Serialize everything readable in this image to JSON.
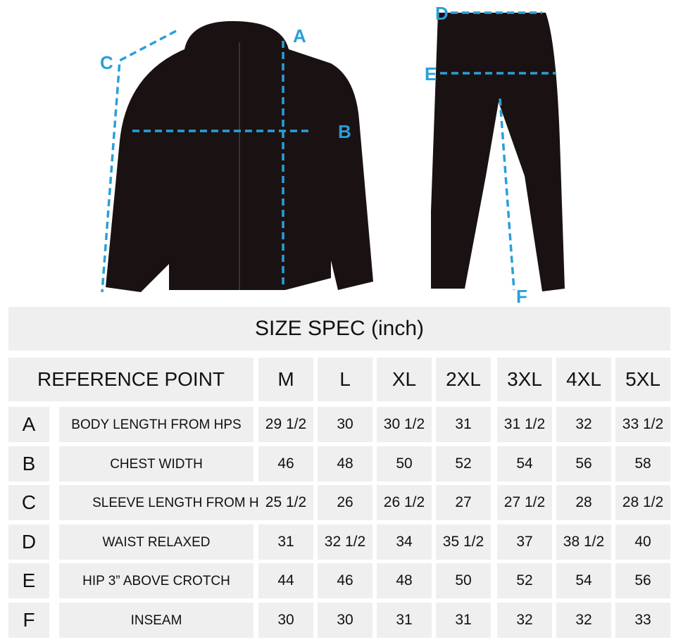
{
  "markers": [
    "A",
    "B",
    "C",
    "D",
    "E",
    "F"
  ],
  "colors": {
    "measure_line": "#2a9fd8",
    "garment": "#1a1212",
    "cell_bg": "#efefef"
  },
  "table": {
    "title": "SIZE SPEC (inch)",
    "reference_header": "REFERENCE POINT",
    "sizes": [
      "M",
      "L",
      "XL",
      "2XL",
      "3XL",
      "4XL",
      "5XL"
    ],
    "rows": [
      {
        "letter": "A",
        "label": "BODY LENGTH FROM HPS",
        "values": [
          "29 1/2",
          "30",
          "30 1/2",
          "31",
          "31 1/2",
          "32",
          "33 1/2"
        ]
      },
      {
        "letter": "B",
        "label": "CHEST WIDTH",
        "values": [
          "46",
          "48",
          "50",
          "52",
          "54",
          "56",
          "58"
        ]
      },
      {
        "letter": "C",
        "label": "SLEEVE LENGTH FROM HPS",
        "values": [
          "25 1/2",
          "26",
          "26 1/2",
          "27",
          "27 1/2",
          "28",
          "28 1/2"
        ]
      },
      {
        "letter": "D",
        "label": "WAIST RELAXED",
        "values": [
          "31",
          "32 1/2",
          "34",
          "35 1/2",
          "37",
          "38 1/2",
          "40"
        ]
      },
      {
        "letter": "E",
        "label": "HIP 3” ABOVE CROTCH",
        "values": [
          "44",
          "46",
          "48",
          "50",
          "52",
          "54",
          "56"
        ]
      },
      {
        "letter": "F",
        "label": "INSEAM",
        "values": [
          "30",
          "30",
          "31",
          "31",
          "32",
          "32",
          "33"
        ]
      }
    ]
  }
}
